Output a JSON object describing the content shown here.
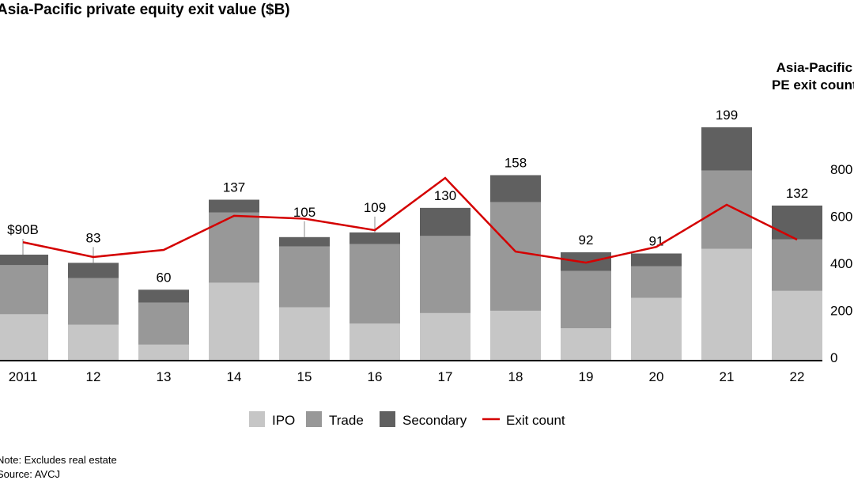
{
  "chart_data": {
    "type": "bar",
    "title": "Asia-Pacific private equity exit value ($B)",
    "right_axis_label": "Asia-Pacific PE exit count",
    "categories": [
      "2011",
      "12",
      "13",
      "14",
      "15",
      "16",
      "17",
      "18",
      "19",
      "20",
      "21",
      "22"
    ],
    "totals": [
      90,
      83,
      60,
      137,
      105,
      109,
      130,
      158,
      92,
      91,
      199,
      132
    ],
    "total_labels": [
      "$90B",
      "83",
      "60",
      "137",
      "105",
      "109",
      "130",
      "158",
      "92",
      "91",
      "199",
      "132"
    ],
    "series": [
      {
        "name": "IPO",
        "color": "#c6c6c6",
        "values": [
          39,
          30,
          13,
          66,
          45,
          31,
          40,
          42,
          27,
          53,
          95,
          59
        ]
      },
      {
        "name": "Trade",
        "color": "#989898",
        "values": [
          42,
          40,
          36,
          60,
          52,
          68,
          66,
          93,
          49,
          27,
          67,
          44
        ]
      },
      {
        "name": "Secondary",
        "color": "#606060",
        "values": [
          9,
          13,
          11,
          11,
          8,
          10,
          24,
          23,
          16,
          11,
          37,
          29
        ]
      }
    ],
    "line_series": {
      "name": "Exit count",
      "color": "#d40000",
      "axis": "right",
      "values": [
        490,
        427,
        457,
        602,
        590,
        541,
        763,
        450,
        403,
        470,
        649,
        501
      ]
    },
    "right_axis": {
      "ticks": [
        "0",
        "200",
        "400",
        "600",
        "800"
      ],
      "range": [
        0,
        800
      ]
    },
    "left_axis_range": [
      0,
      200
    ],
    "legend": {
      "placement": "bottom",
      "entries": [
        "IPO",
        "Trade",
        "Secondary",
        "Exit count"
      ]
    },
    "grid": false
  },
  "notes": {
    "note": "Note: Excludes real estate",
    "source": "Source: AVCJ"
  }
}
